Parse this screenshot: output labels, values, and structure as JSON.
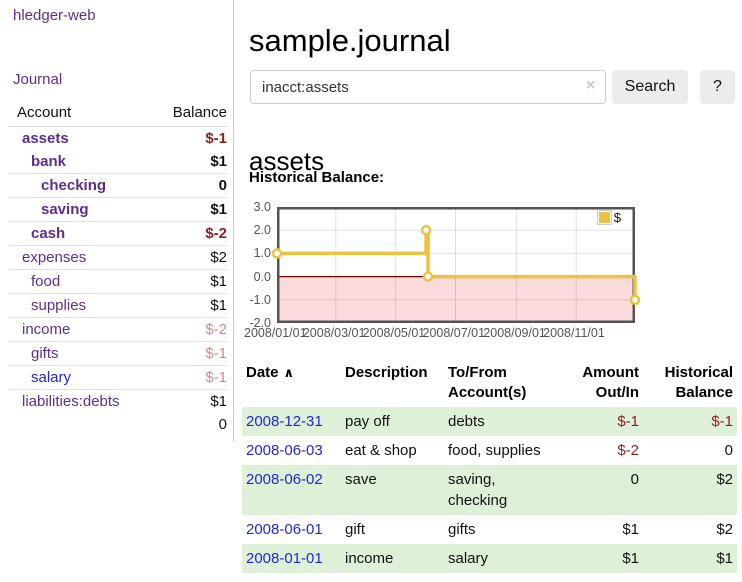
{
  "sidebar": {
    "brand": "hledger-web",
    "nav": {
      "journal": "Journal"
    },
    "accounts": {
      "col_account": "Account",
      "col_balance": "Balance",
      "rows": [
        {
          "name": "assets",
          "balance": "$-1",
          "level": 1,
          "bold": true,
          "negative": "strong"
        },
        {
          "name": "bank",
          "balance": "$1",
          "level": 2,
          "bold": true
        },
        {
          "name": "checking",
          "balance": "0",
          "level": 3,
          "bold": true
        },
        {
          "name": "saving",
          "balance": "$1",
          "level": 3,
          "bold": true
        },
        {
          "name": "cash",
          "balance": "$-2",
          "level": 2,
          "bold": true,
          "negative": "strong"
        },
        {
          "name": "expenses",
          "balance": "$2",
          "level": 1
        },
        {
          "name": "food",
          "balance": "$1",
          "level": 2
        },
        {
          "name": "supplies",
          "balance": "$1",
          "level": 2
        },
        {
          "name": "income",
          "balance": "$-2",
          "level": 1,
          "negative": "light"
        },
        {
          "name": "gifts",
          "balance": "$-1",
          "level": 2,
          "negative": "light"
        },
        {
          "name": "salary",
          "balance": "$-1",
          "level": 2,
          "negative": "light",
          "link_blue": true
        },
        {
          "name": "liabilities:debts",
          "balance": "$1",
          "level": 1
        }
      ],
      "total": "0"
    }
  },
  "header": {
    "title": "sample.journal"
  },
  "search": {
    "value": "inacct:assets",
    "clear_icon": "×",
    "button_label": "Search",
    "help_label": "?"
  },
  "account_page": {
    "heading": "assets",
    "chart_label": "Historical Balance:"
  },
  "chart_data": {
    "type": "line",
    "step": true,
    "title": "Historical Balance:",
    "series": [
      {
        "name": "$",
        "color": "#edc240",
        "points": [
          [
            "2008-01-01",
            1
          ],
          [
            "2008-06-01",
            2
          ],
          [
            "2008-06-03",
            0
          ],
          [
            "2008-12-31",
            -1
          ]
        ]
      }
    ],
    "xlim": [
      "2008-01-01",
      "2008-12-31"
    ],
    "ylim": [
      -2,
      3
    ],
    "x_ticks": [
      "2008/01/01",
      "2008/03/01",
      "2008/05/01",
      "2008/07/01",
      "2008/09/01",
      "2008/11/01"
    ],
    "y_ticks": [
      "3.0",
      "2.0",
      "1.0",
      "0.0",
      "-1.0",
      "-2.0"
    ],
    "legend": {
      "label": "$",
      "position": "top-right"
    },
    "grid": true,
    "negative_region_color": "#fbdbdb",
    "zero_line_color": "#7a0000",
    "border_color": "#545454"
  },
  "register": {
    "columns": [
      "Date",
      "Description",
      "To/From Account(s)",
      "Amount Out/In",
      "Historical Balance"
    ],
    "sort_icon": "∧",
    "rows": [
      {
        "date": "2008-12-31",
        "description": "pay off",
        "accounts": "debts",
        "amount": "$-1",
        "balance": "$-1"
      },
      {
        "date": "2008-06-03",
        "description": "eat & shop",
        "accounts": "food, supplies",
        "amount": "$-2",
        "balance": "0"
      },
      {
        "date": "2008-06-02",
        "description": "save",
        "accounts": "saving, checking",
        "amount": "0",
        "balance": "$2"
      },
      {
        "date": "2008-06-01",
        "description": "gift",
        "accounts": "gifts",
        "amount": "$1",
        "balance": "$2"
      },
      {
        "date": "2008-01-01",
        "description": "income",
        "accounts": "salary",
        "amount": "$1",
        "balance": "$1"
      }
    ]
  }
}
